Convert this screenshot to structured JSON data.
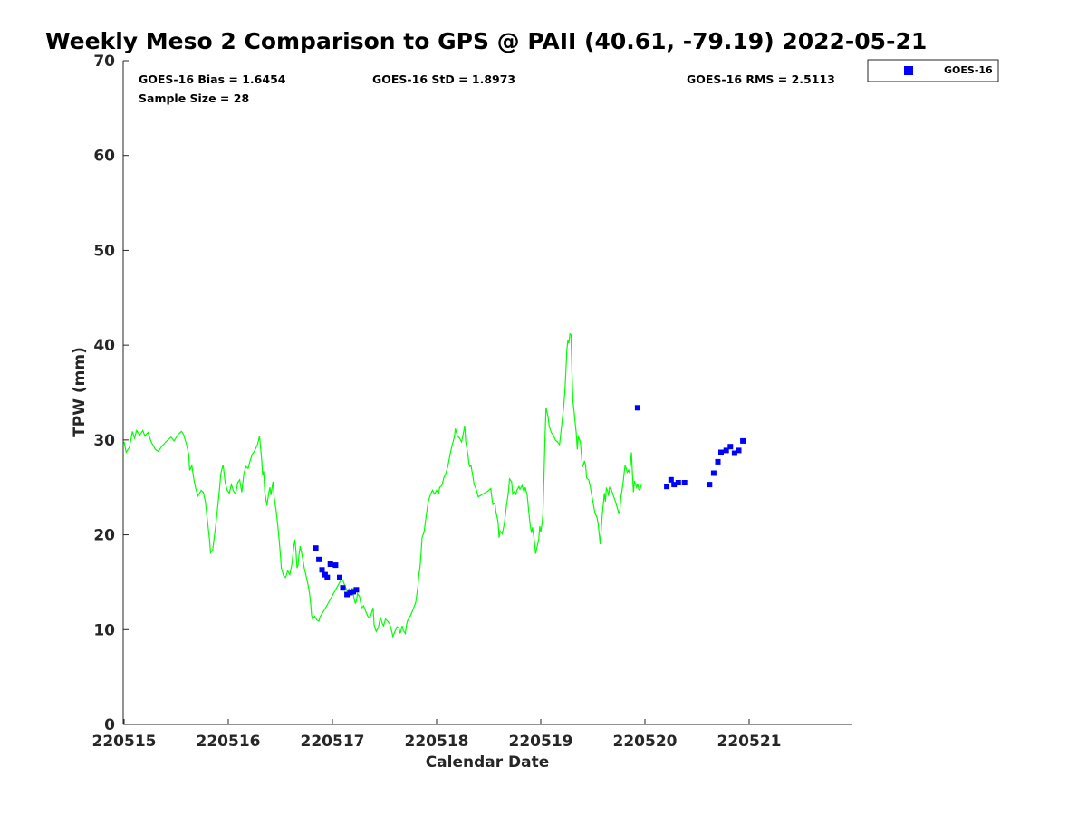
{
  "chart_data": {
    "type": "scatter",
    "title": "Weekly Meso 2 Comparison to GPS @ PAII (40.61, -79.19) 2022-05-21",
    "xlabel": "Calendar Date",
    "ylabel": "TPW (mm)",
    "xlim": [
      220515,
      220522
    ],
    "ylim": [
      0,
      70
    ],
    "x_ticks": [
      "220515",
      "220516",
      "220517",
      "220518",
      "220519",
      "220520",
      "220521"
    ],
    "y_ticks": [
      0,
      10,
      20,
      30,
      40,
      50,
      60,
      70
    ],
    "grid": false,
    "legend_position": "top-right-outside",
    "stats": {
      "bias": "GOES-16 Bias = 1.6454",
      "std": "GOES-16 StD = 1.8973",
      "rms": "GOES-16 RMS = 2.5113",
      "sample": "Sample Size = 28"
    },
    "legend": [
      {
        "label": "GOES-16",
        "color": "#0000ff",
        "marker": "square"
      }
    ],
    "gps_line": {
      "color": "#00ff00",
      "points": [
        [
          0.0,
          29.8
        ],
        [
          0.02,
          28.7
        ],
        [
          0.05,
          29.2
        ],
        [
          0.08,
          30.9
        ],
        [
          0.1,
          30.2
        ],
        [
          0.12,
          31.0
        ],
        [
          0.15,
          30.5
        ],
        [
          0.18,
          31.0
        ],
        [
          0.2,
          30.4
        ],
        [
          0.23,
          30.8
        ],
        [
          0.26,
          29.8
        ],
        [
          0.3,
          29.0
        ],
        [
          0.33,
          28.8
        ],
        [
          0.36,
          29.3
        ],
        [
          0.4,
          29.8
        ],
        [
          0.45,
          30.3
        ],
        [
          0.48,
          29.9
        ],
        [
          0.52,
          30.6
        ],
        [
          0.55,
          30.9
        ],
        [
          0.57,
          30.6
        ],
        [
          0.6,
          29.5
        ],
        [
          0.62,
          28.5
        ],
        [
          0.63,
          26.8
        ],
        [
          0.65,
          27.3
        ],
        [
          0.67,
          25.8
        ],
        [
          0.69,
          24.8
        ],
        [
          0.71,
          24.1
        ],
        [
          0.74,
          24.7
        ],
        [
          0.76,
          24.5
        ],
        [
          0.78,
          23.5
        ],
        [
          0.8,
          21.5
        ],
        [
          0.82,
          19.5
        ],
        [
          0.83,
          18.1
        ],
        [
          0.85,
          18.4
        ],
        [
          0.88,
          21.0
        ],
        [
          0.91,
          24.2
        ],
        [
          0.93,
          26.5
        ],
        [
          0.95,
          27.4
        ],
        [
          0.97,
          25.5
        ],
        [
          0.99,
          24.7
        ],
        [
          1.01,
          24.4
        ],
        [
          1.03,
          25.3
        ],
        [
          1.05,
          24.6
        ],
        [
          1.07,
          24.3
        ],
        [
          1.09,
          25.5
        ],
        [
          1.11,
          25.8
        ],
        [
          1.13,
          24.5
        ],
        [
          1.15,
          26.5
        ],
        [
          1.17,
          27.2
        ],
        [
          1.19,
          27.0
        ],
        [
          1.21,
          27.8
        ],
        [
          1.23,
          28.5
        ],
        [
          1.25,
          28.8
        ],
        [
          1.28,
          29.5
        ],
        [
          1.3,
          30.4
        ],
        [
          1.32,
          28.0
        ],
        [
          1.33,
          26.3
        ],
        [
          1.34,
          26.7
        ],
        [
          1.35,
          24.5
        ],
        [
          1.37,
          23.1
        ],
        [
          1.39,
          24.5
        ],
        [
          1.4,
          25.0
        ],
        [
          1.41,
          24.2
        ],
        [
          1.43,
          25.6
        ],
        [
          1.44,
          24.0
        ],
        [
          1.46,
          22.5
        ],
        [
          1.48,
          20.5
        ],
        [
          1.5,
          18.0
        ],
        [
          1.51,
          16.5
        ],
        [
          1.53,
          15.7
        ],
        [
          1.55,
          15.5
        ],
        [
          1.57,
          16.2
        ],
        [
          1.59,
          15.8
        ],
        [
          1.61,
          16.8
        ],
        [
          1.63,
          18.8
        ],
        [
          1.64,
          19.5
        ],
        [
          1.65,
          18.2
        ],
        [
          1.66,
          16.5
        ],
        [
          1.67,
          16.8
        ],
        [
          1.68,
          18.0
        ],
        [
          1.69,
          18.8
        ],
        [
          1.71,
          17.8
        ],
        [
          1.73,
          16.5
        ],
        [
          1.75,
          15.5
        ],
        [
          1.77,
          14.5
        ],
        [
          1.78,
          13.8
        ],
        [
          1.79,
          12.8
        ],
        [
          1.8,
          11.5
        ],
        [
          1.81,
          11.1
        ],
        [
          1.83,
          11.4
        ],
        [
          1.85,
          11.0
        ],
        [
          1.87,
          10.9
        ],
        [
          1.88,
          11.3
        ],
        [
          1.9,
          11.7
        ],
        [
          1.93,
          12.2
        ],
        [
          1.96,
          12.8
        ],
        [
          1.99,
          13.4
        ],
        [
          2.02,
          14.0
        ],
        [
          2.05,
          14.6
        ],
        [
          2.07,
          15.0
        ],
        [
          2.09,
          15.3
        ],
        [
          2.1,
          15.2
        ],
        [
          2.12,
          14.6
        ],
        [
          2.14,
          14.1
        ],
        [
          2.16,
          14.3
        ],
        [
          2.18,
          14.0
        ],
        [
          2.19,
          14.4
        ],
        [
          2.21,
          13.2
        ],
        [
          2.22,
          12.8
        ],
        [
          2.23,
          13.0
        ],
        [
          2.24,
          13.8
        ],
        [
          2.26,
          13.5
        ],
        [
          2.28,
          12.3
        ],
        [
          2.3,
          12.5
        ],
        [
          2.32,
          11.9
        ],
        [
          2.34,
          11.4
        ],
        [
          2.36,
          11.2
        ],
        [
          2.37,
          11.6
        ],
        [
          2.39,
          12.3
        ],
        [
          2.4,
          10.5
        ],
        [
          2.42,
          9.8
        ],
        [
          2.44,
          10.2
        ],
        [
          2.46,
          11.3
        ],
        [
          2.48,
          10.6
        ],
        [
          2.49,
          10.4
        ],
        [
          2.51,
          11.1
        ],
        [
          2.53,
          10.9
        ],
        [
          2.55,
          10.6
        ],
        [
          2.57,
          9.8
        ],
        [
          2.58,
          9.3
        ],
        [
          2.6,
          9.8
        ],
        [
          2.62,
          10.3
        ],
        [
          2.64,
          10.1
        ],
        [
          2.65,
          9.6
        ],
        [
          2.67,
          10.4
        ],
        [
          2.68,
          9.9
        ],
        [
          2.7,
          9.6
        ],
        [
          2.71,
          10.4
        ],
        [
          2.72,
          10.9
        ],
        [
          2.75,
          11.5
        ],
        [
          2.78,
          12.3
        ],
        [
          2.8,
          12.9
        ],
        [
          2.82,
          14.5
        ],
        [
          2.83,
          15.8
        ],
        [
          2.84,
          16.5
        ],
        [
          2.85,
          18.0
        ],
        [
          2.86,
          19.7
        ],
        [
          2.87,
          20.0
        ],
        [
          2.88,
          20.3
        ],
        [
          2.9,
          22.0
        ],
        [
          2.92,
          23.5
        ],
        [
          2.94,
          24.2
        ],
        [
          2.96,
          24.7
        ],
        [
          2.98,
          24.3
        ],
        [
          3.0,
          24.7
        ],
        [
          3.02,
          24.4
        ],
        [
          3.03,
          25.0
        ],
        [
          3.05,
          25.2
        ],
        [
          3.07,
          26.0
        ],
        [
          3.09,
          26.5
        ],
        [
          3.11,
          27.3
        ],
        [
          3.13,
          28.5
        ],
        [
          3.15,
          29.5
        ],
        [
          3.17,
          30.3
        ],
        [
          3.18,
          31.2
        ],
        [
          3.2,
          30.4
        ],
        [
          3.22,
          30.2
        ],
        [
          3.24,
          29.8
        ],
        [
          3.26,
          30.9
        ],
        [
          3.27,
          31.5
        ],
        [
          3.28,
          29.8
        ],
        [
          3.3,
          28.5
        ],
        [
          3.31,
          27.5
        ],
        [
          3.32,
          27.2
        ],
        [
          3.33,
          27.3
        ],
        [
          3.35,
          26.0
        ],
        [
          3.36,
          25.3
        ],
        [
          3.38,
          24.8
        ],
        [
          3.4,
          24.0
        ],
        [
          3.43,
          24.2
        ],
        [
          3.46,
          24.4
        ],
        [
          3.49,
          24.6
        ],
        [
          3.52,
          24.9
        ],
        [
          3.53,
          23.9
        ],
        [
          3.54,
          23.2
        ],
        [
          3.56,
          23.3
        ],
        [
          3.57,
          22.4
        ],
        [
          3.59,
          21.4
        ],
        [
          3.6,
          19.7
        ],
        [
          3.61,
          20.4
        ],
        [
          3.63,
          20.1
        ],
        [
          3.65,
          21.2
        ],
        [
          3.67,
          23.0
        ],
        [
          3.69,
          24.5
        ],
        [
          3.7,
          25.9
        ],
        [
          3.72,
          25.6
        ],
        [
          3.73,
          24.3
        ],
        [
          3.75,
          24.6
        ],
        [
          3.76,
          24.2
        ],
        [
          3.77,
          24.7
        ],
        [
          3.79,
          25.1
        ],
        [
          3.8,
          24.8
        ],
        [
          3.82,
          25.2
        ],
        [
          3.84,
          24.5
        ],
        [
          3.85,
          25.0
        ],
        [
          3.87,
          24.2
        ],
        [
          3.88,
          23.0
        ],
        [
          3.89,
          21.8
        ],
        [
          3.9,
          20.9
        ],
        [
          3.91,
          20.2
        ],
        [
          3.92,
          20.8
        ],
        [
          3.93,
          20.0
        ],
        [
          3.94,
          19.2
        ],
        [
          3.95,
          18.0
        ],
        [
          3.96,
          18.5
        ],
        [
          3.98,
          19.5
        ],
        [
          3.99,
          20.9
        ],
        [
          4.0,
          20.3
        ],
        [
          4.01,
          21.0
        ],
        [
          4.02,
          22.0
        ],
        [
          4.03,
          26.0
        ],
        [
          4.04,
          30.0
        ],
        [
          4.05,
          33.4
        ],
        [
          4.07,
          32.5
        ],
        [
          4.08,
          31.5
        ],
        [
          4.1,
          30.8
        ],
        [
          4.12,
          30.5
        ],
        [
          4.14,
          30.0
        ],
        [
          4.16,
          29.8
        ],
        [
          4.18,
          29.5
        ],
        [
          4.2,
          31.5
        ],
        [
          4.22,
          33.5
        ],
        [
          4.23,
          35.0
        ],
        [
          4.24,
          37.0
        ],
        [
          4.25,
          39.5
        ],
        [
          4.26,
          40.5
        ],
        [
          4.27,
          40.2
        ],
        [
          4.28,
          41.2
        ],
        [
          4.29,
          41.1
        ],
        [
          4.3,
          37.0
        ],
        [
          4.31,
          34.0
        ],
        [
          4.32,
          33.0
        ],
        [
          4.33,
          31.8
        ],
        [
          4.34,
          30.8
        ],
        [
          4.35,
          29.0
        ],
        [
          4.36,
          30.4
        ],
        [
          4.38,
          29.8
        ],
        [
          4.39,
          28.5
        ],
        [
          4.4,
          27.2
        ],
        [
          4.41,
          27.4
        ],
        [
          4.42,
          27.8
        ],
        [
          4.43,
          27.3
        ],
        [
          4.44,
          26.0
        ],
        [
          4.46,
          25.8
        ],
        [
          4.48,
          24.8
        ],
        [
          4.5,
          23.5
        ],
        [
          4.52,
          22.3
        ],
        [
          4.54,
          21.8
        ],
        [
          4.55,
          21.2
        ],
        [
          4.57,
          19.0
        ],
        [
          4.58,
          20.5
        ],
        [
          4.59,
          22.2
        ],
        [
          4.6,
          23.2
        ],
        [
          4.61,
          24.4
        ],
        [
          4.62,
          23.5
        ],
        [
          4.63,
          24.9
        ],
        [
          4.64,
          24.7
        ],
        [
          4.65,
          24.1
        ],
        [
          4.66,
          25.0
        ],
        [
          4.68,
          24.7
        ],
        [
          4.7,
          24.0
        ],
        [
          4.72,
          23.4
        ],
        [
          4.74,
          22.6
        ],
        [
          4.75,
          22.2
        ],
        [
          4.76,
          22.7
        ],
        [
          4.77,
          24.0
        ],
        [
          4.78,
          24.7
        ],
        [
          4.79,
          25.5
        ],
        [
          4.8,
          26.5
        ],
        [
          4.81,
          27.3
        ],
        [
          4.82,
          27.0
        ],
        [
          4.83,
          26.6
        ],
        [
          4.84,
          26.8
        ],
        [
          4.85,
          26.6
        ],
        [
          4.86,
          27.3
        ],
        [
          4.87,
          28.7
        ],
        [
          4.88,
          26.4
        ],
        [
          4.89,
          24.5
        ],
        [
          4.9,
          25.7
        ],
        [
          4.91,
          25.3
        ],
        [
          4.92,
          25.0
        ],
        [
          4.93,
          25.4
        ],
        [
          4.94,
          24.8
        ],
        [
          4.95,
          24.7
        ],
        [
          4.97,
          25.4
        ]
      ]
    },
    "goes_points": [
      [
        1.84,
        18.6
      ],
      [
        1.87,
        17.4
      ],
      [
        1.9,
        16.3
      ],
      [
        1.93,
        15.8
      ],
      [
        1.95,
        15.5
      ],
      [
        1.98,
        16.9
      ],
      [
        2.03,
        16.8
      ],
      [
        2.07,
        15.5
      ],
      [
        2.1,
        14.4
      ],
      [
        2.14,
        13.7
      ],
      [
        2.17,
        13.9
      ],
      [
        2.2,
        14.0
      ],
      [
        2.23,
        14.2
      ],
      [
        4.93,
        33.4
      ],
      [
        5.21,
        25.1
      ],
      [
        5.25,
        25.8
      ],
      [
        5.28,
        25.3
      ],
      [
        5.32,
        25.5
      ],
      [
        5.38,
        25.5
      ],
      [
        5.62,
        25.3
      ],
      [
        5.66,
        26.5
      ],
      [
        5.7,
        27.7
      ],
      [
        5.73,
        28.7
      ],
      [
        5.78,
        28.9
      ],
      [
        5.82,
        29.3
      ],
      [
        5.86,
        28.6
      ],
      [
        5.9,
        28.9
      ],
      [
        5.94,
        29.9
      ]
    ]
  }
}
